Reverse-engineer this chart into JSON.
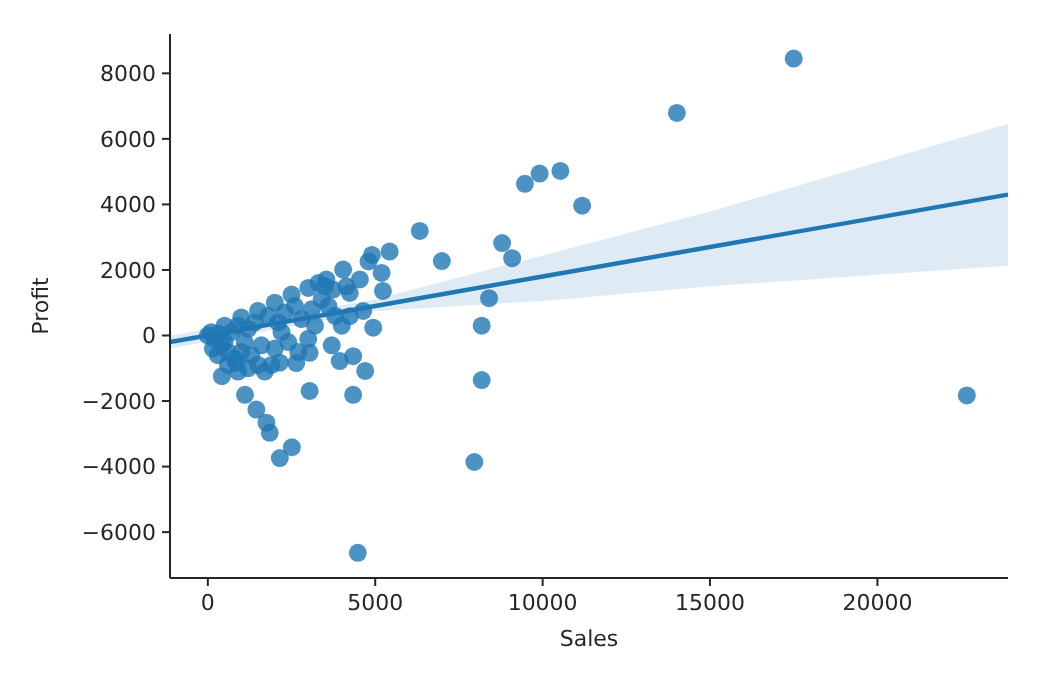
{
  "chart_data": {
    "type": "scatter",
    "xlabel": "Sales",
    "ylabel": "Profit",
    "xlim": [
      -1130,
      23900
    ],
    "ylim": [
      -7400,
      9200
    ],
    "xticks": [
      0,
      5000,
      10000,
      15000,
      20000
    ],
    "yticks": [
      {
        "value": -6000,
        "label": "−6000"
      },
      {
        "value": -4000,
        "label": "−4000"
      },
      {
        "value": -2000,
        "label": "−2000"
      },
      0,
      2000,
      4000,
      6000,
      8000
    ],
    "grid": false,
    "marker": "circle",
    "series": [
      {
        "color": "#1f77b4",
        "x": [
          17500,
          14010,
          9470,
          9910,
          10530,
          11180,
          8790,
          9090,
          8400,
          8180,
          8180,
          7960,
          22670,
          4480,
          6330,
          6990,
          5430,
          4900,
          4800,
          5190,
          5230,
          4640,
          4940,
          4700,
          4340,
          4340,
          3940,
          3040,
          3040,
          2510,
          2150,
          1850,
          1750,
          1450,
          1110,
          420,
          850,
          2150,
          2640,
          4040,
          3540,
          3740,
          4140,
          4240,
          4540,
          4240,
          100,
          500,
          1000,
          1500,
          2000,
          2500,
          3000,
          3300,
          3500,
          0,
          200,
          300,
          400,
          600,
          800,
          500,
          700,
          900,
          1200,
          1100,
          1300,
          1500,
          1700,
          1900,
          1400,
          1800,
          2100,
          2300,
          2600,
          2800,
          3100,
          3400,
          3200,
          2400,
          2000,
          1600,
          1200,
          900,
          600,
          2700,
          3000,
          3600,
          3800,
          4000,
          3700,
          2200,
          1000,
          300,
          150
        ],
        "values": [
          8450,
          6790,
          4630,
          4940,
          5020,
          3960,
          2820,
          2360,
          1140,
          300,
          -1360,
          -3860,
          -1830,
          -6630,
          3190,
          2270,
          2560,
          2460,
          2260,
          1910,
          1360,
          750,
          240,
          -1080,
          -1810,
          -630,
          -780,
          -1690,
          -530,
          -3410,
          -3740,
          -2970,
          -2660,
          -2260,
          -1810,
          -1240,
          -830,
          -830,
          -840,
          2010,
          1710,
          1400,
          1500,
          1300,
          1710,
          590,
          100,
          300,
          550,
          750,
          1000,
          1250,
          1450,
          1600,
          1500,
          0,
          -100,
          50,
          -300,
          -500,
          -700,
          -200,
          100,
          300,
          200,
          -200,
          -600,
          -900,
          -1100,
          -900,
          400,
          600,
          400,
          700,
          900,
          500,
          800,
          1100,
          300,
          -200,
          -400,
          -300,
          -1000,
          -1100,
          -900,
          -500,
          -100,
          900,
          600,
          300,
          -300,
          100,
          -500,
          -600,
          -400
        ]
      },
      {
        "type": "line",
        "marker": "none",
        "color": "#1f77b4",
        "x": [
          -1130,
          5000,
          10000,
          15000,
          23900
        ],
        "values": [
          -200,
          900,
          1800,
          2700,
          4300
        ],
        "lower": [
          -400,
          750,
          1050,
          1500,
          2130
        ],
        "upper": [
          0,
          1100,
          2440,
          3780,
          6460
        ]
      }
    ]
  }
}
